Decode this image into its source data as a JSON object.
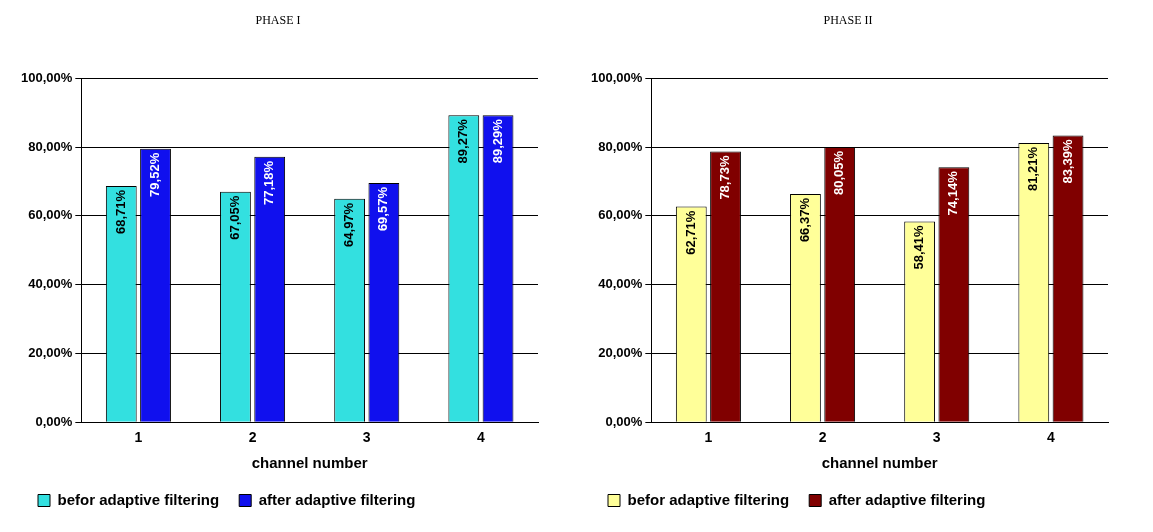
{
  "chart_data": [
    {
      "type": "bar",
      "title": "PHASE I",
      "xlabel": "channel number",
      "categories": [
        "1",
        "2",
        "3",
        "4"
      ],
      "series": [
        {
          "name": "befor adaptive filtering",
          "color": "#33e0e0",
          "values": [
            68.71,
            67.05,
            64.97,
            89.27
          ],
          "value_labels": [
            "68,71%",
            "67,05%",
            "64,97%",
            "89,27%"
          ]
        },
        {
          "name": "after adaptive filtering",
          "color": "#1010ee",
          "values": [
            79.52,
            77.18,
            69.57,
            89.29
          ],
          "value_labels": [
            "79,52%",
            "77,18%",
            "69,57%",
            "89,29%"
          ]
        }
      ],
      "ylim": [
        0,
        100
      ],
      "yticks": [
        {
          "value": 0,
          "label": "0,00%"
        },
        {
          "value": 20,
          "label": "20,00%"
        },
        {
          "value": 40,
          "label": "40,00%"
        },
        {
          "value": 60,
          "label": "60,00%"
        },
        {
          "value": 80,
          "label": "80,00%"
        },
        {
          "value": 100,
          "label": "100,00%"
        }
      ],
      "grid": "y",
      "legend": "bottom"
    },
    {
      "type": "bar",
      "title": "PHASE II",
      "xlabel": "channel number",
      "categories": [
        "1",
        "2",
        "3",
        "4"
      ],
      "series": [
        {
          "name": "befor adaptive filtering",
          "color": "#ffff99",
          "values": [
            62.71,
            66.37,
            58.41,
            81.21
          ],
          "value_labels": [
            "62,71%",
            "66,37%",
            "58,41%",
            "81,21%"
          ]
        },
        {
          "name": "after adaptive filtering",
          "color": "#800000",
          "values": [
            78.73,
            80.05,
            74.14,
            83.39
          ],
          "value_labels": [
            "78,73%",
            "80,05%",
            "74,14%",
            "83,39%"
          ]
        }
      ],
      "ylim": [
        0,
        100
      ],
      "yticks": [
        {
          "value": 0,
          "label": "0,00%"
        },
        {
          "value": 20,
          "label": "20,00%"
        },
        {
          "value": 40,
          "label": "40,00%"
        },
        {
          "value": 60,
          "label": "60,00%"
        },
        {
          "value": 80,
          "label": "80,00%"
        },
        {
          "value": 100,
          "label": "100,00%"
        }
      ],
      "grid": "y",
      "legend": "bottom"
    }
  ]
}
